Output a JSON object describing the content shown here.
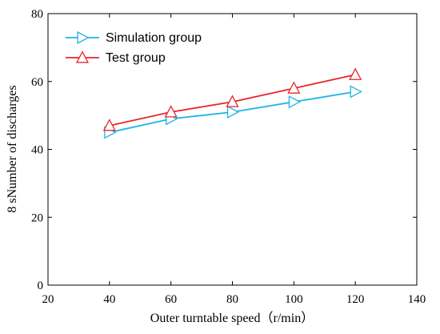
{
  "chart_data": {
    "type": "line",
    "xlabel": "Outer turntable speed（r/min）",
    "ylabel": "8 sNumber of discharges",
    "xlim": [
      20,
      140
    ],
    "ylim": [
      0,
      80
    ],
    "xticks": [
      20,
      40,
      60,
      80,
      100,
      120,
      140
    ],
    "yticks": [
      0,
      20,
      40,
      60,
      80
    ],
    "grid": false,
    "legend_position": "top-left",
    "series": [
      {
        "name": "Simulation group",
        "color": "#1FB4E6",
        "marker": "triangle-right",
        "x": [
          40,
          60,
          80,
          100,
          120
        ],
        "y": [
          45,
          49,
          51,
          54,
          57
        ]
      },
      {
        "name": "Test group",
        "color": "#E8262B",
        "marker": "triangle-up",
        "x": [
          40,
          60,
          80,
          100,
          120
        ],
        "y": [
          47,
          51,
          54,
          58,
          62
        ]
      }
    ]
  }
}
